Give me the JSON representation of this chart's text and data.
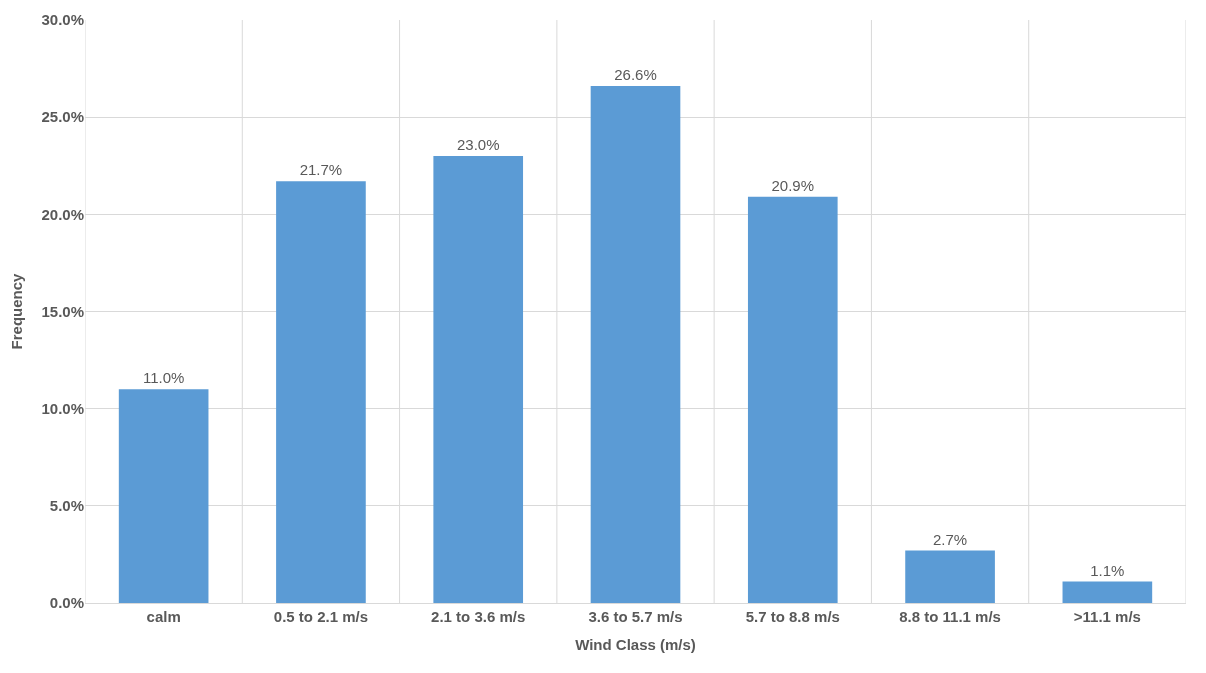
{
  "chart_data": {
    "type": "bar",
    "xlabel": "Wind Class (m/s)",
    "ylabel": "Frequency",
    "categories": [
      "calm",
      "0.5 to 2.1 m/s",
      "2.1 to 3.6 m/s",
      "3.6 to 5.7 m/s",
      "5.7 to 8.8 m/s",
      "8.8 to 11.1 m/s",
      ">11.1 m/s"
    ],
    "values": [
      11.0,
      21.7,
      23.0,
      26.6,
      20.9,
      2.7,
      1.1
    ],
    "value_labels": [
      "11.0%",
      "21.7%",
      "23.0%",
      "26.6%",
      "20.9%",
      "2.7%",
      "1.1%"
    ],
    "color": "#5b9bd5",
    "ylim": [
      0,
      30
    ],
    "yticks": [
      {
        "value": 0,
        "label": "0.0%"
      },
      {
        "value": 5,
        "label": "5.0%"
      },
      {
        "value": 10,
        "label": "10.0%"
      },
      {
        "value": 15,
        "label": "15.0%"
      },
      {
        "value": 20,
        "label": "20.0%"
      },
      {
        "value": 25,
        "label": "25.0%"
      },
      {
        "value": 30,
        "label": "30.0%"
      }
    ],
    "grid": true
  }
}
